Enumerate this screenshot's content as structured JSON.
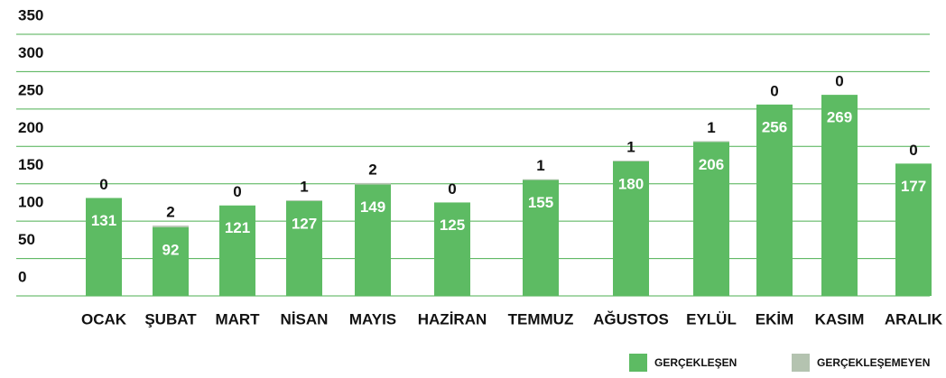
{
  "chart_data": {
    "type": "stacked_bar",
    "categories": [
      "OCAK",
      "ŞUBAT",
      "MART",
      "NİSAN",
      "MAYIS",
      "HAZİRAN",
      "TEMMUZ",
      "AĞUSTOS",
      "EYLÜL",
      "EKİM",
      "KASIM",
      "ARALIK"
    ],
    "series": [
      {
        "name": "GERÇEKLEŞEN",
        "color": "#5dbb63",
        "values": [
          131,
          92,
          121,
          127,
          149,
          125,
          155,
          180,
          206,
          256,
          269,
          177
        ]
      },
      {
        "name": "GERÇEKLEŞEMEYEN",
        "color": "#b4c3b0",
        "values": [
          0,
          2,
          0,
          1,
          2,
          0,
          1,
          1,
          1,
          0,
          0,
          0
        ]
      }
    ],
    "ylim": [
      0,
      350
    ],
    "yticks": [
      0,
      50,
      100,
      150,
      200,
      250,
      300,
      350
    ],
    "grid": true,
    "legend": "bottom-right"
  }
}
